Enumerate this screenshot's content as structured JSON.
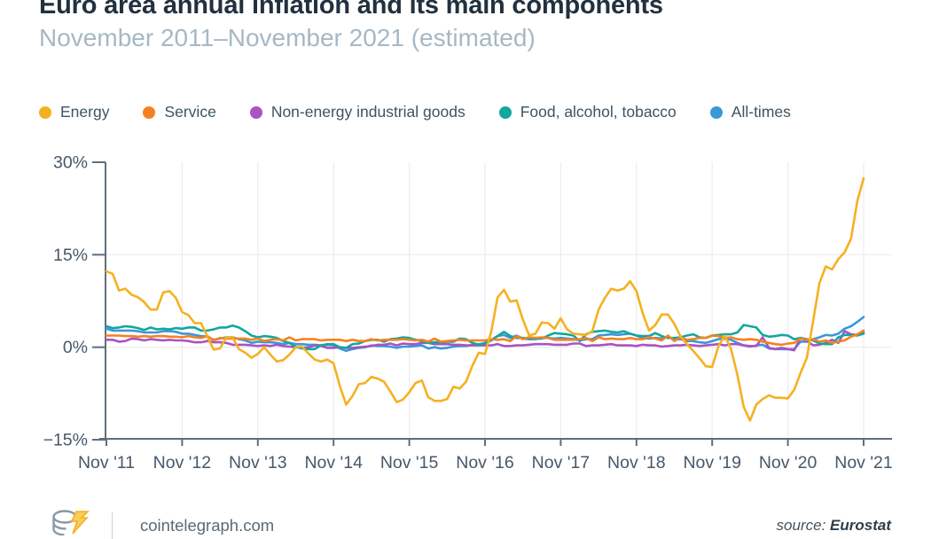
{
  "header": {
    "title": "Euro area annual inflation and its main components",
    "subtitle": "November 2011–November 2021 (estimated)"
  },
  "footer": {
    "site": "cointelegraph.com",
    "source_label": "source:",
    "source_name": "Eurostat",
    "logo_icon": "cointelegraph-coin-stack-lightning",
    "logo_colors": {
      "coin": "#8A98A4",
      "bolt": "#F5B120"
    }
  },
  "colors": {
    "title": "#22313F",
    "subtitle": "#A6B8C4",
    "axis_line": "#5F6E7D",
    "axis_label": "#46586A",
    "grid": "#ECECEC",
    "legend_text": "#3E5463"
  },
  "chart_data": {
    "type": "line",
    "title": "Euro area annual inflation and its main components",
    "subtitle": "November 2011–November 2021 (estimated)",
    "x_unit": "month",
    "x_range": [
      "Nov 2011",
      "Nov 2021"
    ],
    "ylim": [
      -15,
      30
    ],
    "grid": {
      "horizontal_at": [
        15,
        0
      ],
      "vertical_at_year_ticks": true
    },
    "legend_position": "top",
    "y_ticks": [
      {
        "value": 30,
        "label": "30%"
      },
      {
        "value": 15,
        "label": "15%"
      },
      {
        "value": 0,
        "label": "0%"
      },
      {
        "value": -15,
        "label": "−15%"
      }
    ],
    "x_ticks": [
      {
        "month_index": 0,
        "label": "Nov '11"
      },
      {
        "month_index": 12,
        "label": "Nov '12"
      },
      {
        "month_index": 24,
        "label": "Nov '13"
      },
      {
        "month_index": 36,
        "label": "Nov '14"
      },
      {
        "month_index": 48,
        "label": "Nov '15"
      },
      {
        "month_index": 60,
        "label": "Nov '16"
      },
      {
        "month_index": 72,
        "label": "Nov '17"
      },
      {
        "month_index": 84,
        "label": "Nov '18"
      },
      {
        "month_index": 96,
        "label": "Nov '19"
      },
      {
        "month_index": 108,
        "label": "Nov '20"
      },
      {
        "month_index": 120,
        "label": "Nov '21"
      }
    ],
    "draw_order": [
      4,
      2,
      3,
      1,
      0
    ],
    "series": [
      {
        "name": "Energy",
        "color": "#F5B120",
        "values": [
          12.3,
          11.9,
          9.2,
          9.5,
          8.5,
          8.1,
          7.3,
          6.1,
          6.1,
          8.9,
          9.1,
          8.0,
          5.7,
          5.2,
          3.9,
          3.9,
          1.7,
          -0.4,
          -0.2,
          1.6,
          1.6,
          -0.3,
          -0.9,
          -1.7,
          -1.1,
          0.0,
          -1.2,
          -2.3,
          -2.1,
          -1.2,
          0.0,
          0.1,
          -1.0,
          -2.0,
          -2.3,
          -2.0,
          -2.6,
          -6.3,
          -9.3,
          -7.9,
          -6.0,
          -5.8,
          -4.8,
          -5.1,
          -5.6,
          -7.2,
          -8.9,
          -8.5,
          -7.3,
          -5.8,
          -5.4,
          -8.1,
          -8.7,
          -8.7,
          -8.4,
          -6.4,
          -6.7,
          -5.6,
          -3.0,
          -0.9,
          -1.1,
          2.6,
          8.1,
          9.3,
          7.4,
          7.6,
          4.5,
          1.9,
          2.2,
          4.0,
          3.9,
          3.0,
          4.7,
          2.9,
          2.2,
          2.1,
          2.0,
          2.6,
          6.1,
          8.0,
          9.5,
          9.2,
          9.5,
          10.7,
          9.1,
          5.5,
          2.7,
          3.6,
          5.3,
          5.3,
          3.8,
          1.7,
          0.5,
          -0.6,
          -1.8,
          -3.1,
          -3.2,
          0.2,
          1.9,
          -0.3,
          -4.5,
          -9.7,
          -11.9,
          -9.3,
          -8.4,
          -7.8,
          -8.2,
          -8.2,
          -8.3,
          -6.9,
          -4.2,
          -1.7,
          4.3,
          10.4,
          13.1,
          12.6,
          14.3,
          15.4,
          17.6,
          23.7,
          27.4
        ]
      },
      {
        "name": "Service",
        "color": "#F58220",
        "values": [
          1.9,
          1.9,
          1.9,
          1.8,
          1.8,
          1.7,
          1.8,
          1.7,
          1.8,
          1.8,
          1.7,
          1.7,
          1.6,
          1.8,
          1.6,
          1.5,
          1.8,
          1.1,
          1.5,
          1.4,
          1.4,
          1.4,
          1.4,
          1.2,
          1.4,
          1.0,
          1.2,
          1.3,
          1.1,
          1.6,
          1.1,
          1.3,
          1.3,
          1.3,
          1.1,
          1.2,
          1.2,
          1.2,
          1.0,
          1.2,
          1.0,
          1.0,
          1.3,
          1.1,
          1.2,
          1.2,
          1.2,
          1.3,
          1.2,
          1.1,
          1.2,
          0.9,
          1.4,
          0.9,
          1.0,
          1.1,
          1.2,
          1.1,
          1.1,
          1.1,
          1.1,
          1.3,
          1.2,
          1.3,
          1.0,
          1.8,
          1.3,
          1.6,
          1.5,
          1.6,
          1.5,
          1.2,
          1.2,
          1.2,
          1.2,
          1.3,
          1.5,
          1.0,
          1.6,
          1.3,
          1.4,
          1.3,
          1.3,
          1.5,
          1.3,
          1.3,
          1.6,
          1.4,
          1.1,
          1.9,
          1.0,
          1.6,
          1.2,
          1.3,
          1.5,
          1.5,
          1.9,
          1.8,
          1.5,
          1.6,
          1.3,
          1.2,
          1.3,
          1.2,
          0.9,
          0.7,
          0.5,
          0.4,
          0.6,
          0.7,
          1.4,
          1.2,
          1.3,
          0.9,
          1.1,
          0.7,
          0.9,
          1.1,
          1.7,
          2.1,
          2.7
        ]
      },
      {
        "name": "Non-energy industrial goods",
        "color": "#A953C4",
        "values": [
          1.2,
          1.2,
          0.9,
          1.0,
          1.4,
          1.3,
          1.1,
          1.3,
          1.2,
          1.1,
          1.2,
          1.1,
          1.1,
          1.0,
          0.8,
          0.8,
          1.0,
          0.8,
          0.8,
          0.7,
          0.4,
          0.4,
          0.4,
          0.3,
          0.2,
          0.3,
          0.2,
          0.4,
          0.2,
          0.1,
          0.0,
          -0.1,
          0.0,
          0.3,
          0.2,
          -0.1,
          -0.1,
          0.0,
          -0.1,
          -0.1,
          0.0,
          0.1,
          0.2,
          0.4,
          0.4,
          0.6,
          0.3,
          0.6,
          0.5,
          0.5,
          0.7,
          0.7,
          0.5,
          0.5,
          0.5,
          0.4,
          0.4,
          0.3,
          0.3,
          0.3,
          0.3,
          0.3,
          0.5,
          0.2,
          0.2,
          0.3,
          0.3,
          0.4,
          0.5,
          0.5,
          0.5,
          0.4,
          0.4,
          0.4,
          0.6,
          0.6,
          0.2,
          0.3,
          0.3,
          0.4,
          0.5,
          0.3,
          0.3,
          0.3,
          0.2,
          0.4,
          0.3,
          0.3,
          0.1,
          0.2,
          0.3,
          0.3,
          0.4,
          0.3,
          0.2,
          0.3,
          0.4,
          0.5,
          0.3,
          0.5,
          0.5,
          0.3,
          0.2,
          0.2,
          1.6,
          -0.1,
          -0.3,
          -0.1,
          -0.3,
          -0.5,
          1.5,
          1.0,
          0.3,
          0.4,
          0.7,
          1.2,
          0.7,
          2.6,
          2.1,
          2.0,
          2.4
        ]
      },
      {
        "name": "Food, alcohol, tobacco",
        "color": "#12A79F",
        "values": [
          3.4,
          3.1,
          3.2,
          3.4,
          3.3,
          3.1,
          2.8,
          3.2,
          2.9,
          3.0,
          2.9,
          3.1,
          3.0,
          3.2,
          3.2,
          2.7,
          2.7,
          2.9,
          3.2,
          3.2,
          3.5,
          3.2,
          2.6,
          1.9,
          1.6,
          1.8,
          1.7,
          1.5,
          1.0,
          0.7,
          0.1,
          -0.2,
          -0.3,
          -0.3,
          0.3,
          0.5,
          0.5,
          0.0,
          -0.1,
          0.5,
          0.6,
          1.0,
          1.2,
          1.2,
          0.9,
          1.3,
          1.4,
          1.6,
          1.5,
          1.2,
          1.0,
          0.7,
          0.8,
          0.8,
          0.9,
          0.9,
          1.4,
          1.3,
          0.7,
          0.4,
          0.7,
          1.2,
          1.8,
          2.5,
          1.8,
          1.5,
          1.5,
          1.4,
          1.4,
          1.4,
          1.9,
          2.3,
          2.2,
          2.1,
          1.9,
          1.0,
          2.1,
          2.5,
          2.6,
          2.7,
          2.5,
          2.4,
          2.6,
          2.2,
          1.9,
          1.8,
          1.8,
          2.3,
          1.8,
          1.5,
          1.5,
          1.6,
          1.9,
          2.1,
          1.6,
          1.5,
          1.9,
          2.0,
          2.1,
          2.1,
          2.4,
          3.6,
          3.4,
          3.2,
          2.0,
          1.7,
          1.8,
          2.0,
          1.9,
          1.3,
          1.5,
          1.3,
          1.1,
          0.6,
          0.5,
          0.5,
          1.6,
          2.0,
          2.0,
          1.9,
          2.2
        ]
      },
      {
        "name": "All-times",
        "color": "#3B97D8",
        "values": [
          3.0,
          2.7,
          2.7,
          2.7,
          2.7,
          2.6,
          2.4,
          2.4,
          2.4,
          2.6,
          2.6,
          2.5,
          2.2,
          2.2,
          2.0,
          1.8,
          1.7,
          1.2,
          1.4,
          1.6,
          1.6,
          1.3,
          1.1,
          0.7,
          0.9,
          0.8,
          0.8,
          0.7,
          0.5,
          0.7,
          0.5,
          0.5,
          0.4,
          0.4,
          0.3,
          0.4,
          0.3,
          -0.2,
          -0.6,
          -0.3,
          -0.1,
          0.0,
          0.3,
          0.2,
          0.2,
          0.1,
          -0.1,
          0.1,
          0.1,
          0.2,
          0.3,
          -0.2,
          0.0,
          -0.2,
          -0.1,
          0.1,
          0.2,
          0.2,
          0.4,
          0.5,
          0.6,
          1.1,
          1.8,
          2.0,
          1.5,
          1.9,
          1.4,
          1.3,
          1.3,
          1.5,
          1.5,
          1.4,
          1.5,
          1.4,
          1.3,
          1.1,
          1.3,
          1.3,
          1.9,
          2.0,
          2.1,
          2.0,
          2.1,
          2.2,
          1.9,
          1.5,
          1.4,
          1.5,
          1.4,
          1.7,
          1.2,
          1.3,
          1.0,
          1.0,
          0.8,
          0.7,
          1.0,
          1.3,
          1.4,
          1.2,
          0.7,
          0.3,
          0.1,
          0.3,
          0.4,
          -0.2,
          -0.3,
          -0.3,
          -0.3,
          -0.3,
          0.9,
          0.9,
          1.3,
          1.6,
          2.0,
          1.9,
          2.2,
          3.0,
          3.4,
          4.1,
          4.9
        ]
      }
    ]
  }
}
